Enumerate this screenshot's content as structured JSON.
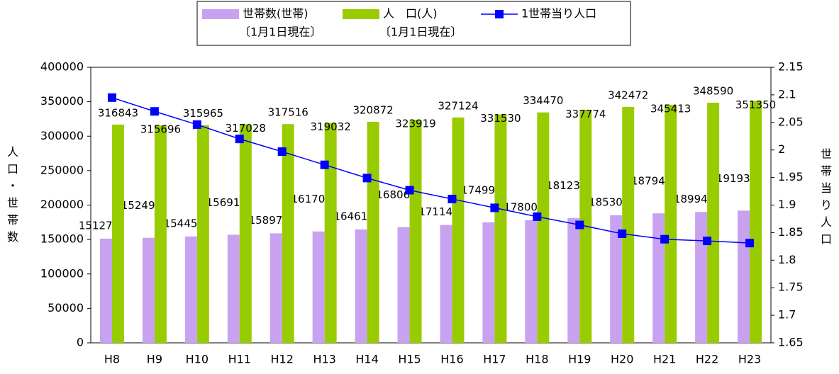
{
  "chart_data": {
    "type": "bar_line",
    "categories": [
      "H8",
      "H9",
      "H10",
      "H11",
      "H12",
      "H13",
      "H14",
      "H15",
      "H16",
      "H17",
      "H18",
      "H19",
      "H20",
      "H21",
      "H22",
      "H23"
    ],
    "series": [
      {
        "name": "世帯数(世帯)",
        "sublabel": "〔1月1日現在〕",
        "color": "#c8a2f0",
        "kind": "bar",
        "values": [
          151270,
          152491,
          154453,
          156910,
          158972,
          161707,
          164611,
          168060,
          171146,
          174997,
          178008,
          181238,
          185306,
          187949,
          189946,
          191930
        ]
      },
      {
        "name": "人　口(人)",
        "sublabel": "〔1月1日現在〕",
        "color": "#99cc00",
        "kind": "bar",
        "values": [
          316843,
          315696,
          315965,
          317028,
          317516,
          319032,
          320872,
          323919,
          327124,
          331530,
          334470,
          337774,
          342472,
          345413,
          348590,
          351350
        ]
      },
      {
        "name": "1世帯当り人口",
        "color": "#0000ff",
        "kind": "line",
        "axis": "y2",
        "values": [
          2.095,
          2.07,
          2.046,
          2.02,
          1.997,
          1.973,
          1.949,
          1.927,
          1.911,
          1.895,
          1.879,
          1.864,
          1.848,
          1.838,
          1.835,
          1.831
        ]
      }
    ],
    "ylabel": "人口・世帯数",
    "y2label": "世帯当り人口",
    "ylim": [
      0,
      400000
    ],
    "yticks": [
      0,
      50000,
      100000,
      150000,
      200000,
      250000,
      300000,
      350000,
      400000
    ],
    "y2lim": [
      1.65,
      2.15
    ],
    "y2ticks": [
      1.65,
      1.7,
      1.75,
      1.8,
      1.85,
      1.9,
      1.95,
      2,
      2.05,
      2.1,
      2.15
    ]
  }
}
